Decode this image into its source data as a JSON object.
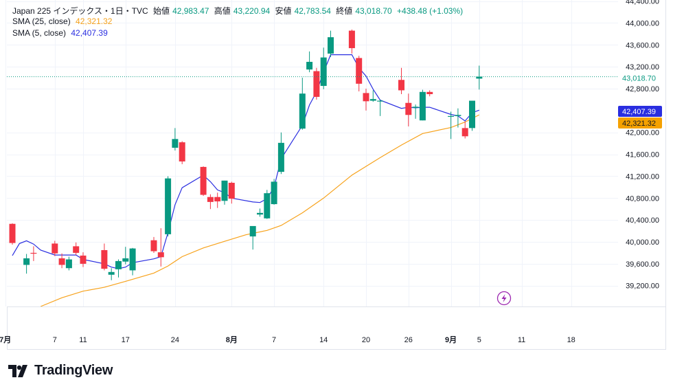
{
  "legend": {
    "symbol": "Japan 225 インデックス・1日・TVC",
    "open_label": "始値",
    "open": "42,983.47",
    "high_label": "高値",
    "high": "43,220.94",
    "low_label": "安値",
    "low": "42,783.54",
    "close_label": "終値",
    "close": "43,018.70",
    "change": "+438.48 (+1.03%)",
    "sma25_label": "SMA (25, close)",
    "sma25_value": "42,321.32",
    "sma5_label": "SMA (5, close)",
    "sma5_value": "42,407.39"
  },
  "price_badges": {
    "last": "43,018.70",
    "sma5": "42,407.39",
    "sma25": "42,321.32"
  },
  "brand": "TradingView",
  "colors": {
    "up": "#089981",
    "down": "#f23645",
    "sma5": "#2a2ee0",
    "sma25": "#f7a21b",
    "badge_sma5": "#2a2ee0",
    "badge_sma25": "#f5a100"
  },
  "chart_data": {
    "type": "candlestick",
    "y_ticks": [
      "44,400.00",
      "44,000.00",
      "43,600.00",
      "43,200.00",
      "42,800.00",
      "42,000.00",
      "41,600.00",
      "41,200.00",
      "40,800.00",
      "40,400.00",
      "40,000.00",
      "39,600.00",
      "39,200.00"
    ],
    "y_tick_values": [
      44400,
      44000,
      43600,
      43200,
      42800,
      42000,
      41600,
      41200,
      40800,
      40400,
      40000,
      39600,
      39200
    ],
    "ylim": [
      38820,
      44420
    ],
    "x_ticks": [
      {
        "label": "7月",
        "day": -1,
        "bold": true
      },
      {
        "label": "7",
        "day": 6
      },
      {
        "label": "11",
        "day": 10
      },
      {
        "label": "17",
        "day": 16
      },
      {
        "label": "24",
        "day": 23
      },
      {
        "label": "8月",
        "day": 31,
        "bold": true
      },
      {
        "label": "7",
        "day": 37
      },
      {
        "label": "14",
        "day": 44
      },
      {
        "label": "20",
        "day": 50
      },
      {
        "label": "26",
        "day": 56
      },
      {
        "label": "9月",
        "day": 62,
        "bold": true
      },
      {
        "label": "5",
        "day": 66
      },
      {
        "label": "11",
        "day": 72
      },
      {
        "label": "18",
        "day": 79
      }
    ],
    "candles": [
      {
        "day": 0,
        "o": 40330,
        "h": 40340,
        "l": 39950,
        "c": 39980
      },
      {
        "day": 2,
        "o": 39580,
        "h": 39780,
        "l": 39420,
        "c": 39700
      },
      {
        "day": 3,
        "o": 39800,
        "h": 39920,
        "l": 39650,
        "c": 39790
      },
      {
        "day": 6,
        "o": 39970,
        "h": 40020,
        "l": 39740,
        "c": 39790
      },
      {
        "day": 7,
        "o": 39700,
        "h": 39790,
        "l": 39520,
        "c": 39580
      },
      {
        "day": 8,
        "o": 39520,
        "h": 39730,
        "l": 39480,
        "c": 39680
      },
      {
        "day": 9,
        "o": 39920,
        "h": 39990,
        "l": 39760,
        "c": 39800
      },
      {
        "day": 10,
        "o": 39750,
        "h": 39810,
        "l": 39540,
        "c": 39600
      },
      {
        "day": 13,
        "o": 39850,
        "h": 39970,
        "l": 39480,
        "c": 39510
      },
      {
        "day": 14,
        "o": 39400,
        "h": 39520,
        "l": 39300,
        "c": 39450
      },
      {
        "day": 15,
        "o": 39500,
        "h": 39680,
        "l": 39350,
        "c": 39650
      },
      {
        "day": 16,
        "o": 39640,
        "h": 39910,
        "l": 39590,
        "c": 39700
      },
      {
        "day": 17,
        "o": 39480,
        "h": 39890,
        "l": 39390,
        "c": 39880
      },
      {
        "day": 20,
        "o": 40030,
        "h": 40090,
        "l": 39800,
        "c": 39830
      },
      {
        "day": 21,
        "o": 39810,
        "h": 40250,
        "l": 39550,
        "c": 39720
      },
      {
        "day": 22,
        "o": 40140,
        "h": 41200,
        "l": 40100,
        "c": 41160
      },
      {
        "day": 23,
        "o": 41720,
        "h": 42080,
        "l": 41670,
        "c": 41880
      },
      {
        "day": 24,
        "o": 41820,
        "h": 41840,
        "l": 41420,
        "c": 41470
      },
      {
        "day": 27,
        "o": 41370,
        "h": 41380,
        "l": 40840,
        "c": 40860
      },
      {
        "day": 28,
        "o": 40820,
        "h": 40870,
        "l": 40600,
        "c": 40730
      },
      {
        "day": 29,
        "o": 40820,
        "h": 40900,
        "l": 40620,
        "c": 40740
      },
      {
        "day": 30,
        "o": 40750,
        "h": 41120,
        "l": 40680,
        "c": 41120
      },
      {
        "day": 31,
        "o": 41080,
        "h": 41100,
        "l": 40700,
        "c": 40790
      },
      {
        "day": 34,
        "o": 40100,
        "h": 40270,
        "l": 39860,
        "c": 40290
      },
      {
        "day": 35,
        "o": 40500,
        "h": 40610,
        "l": 40460,
        "c": 40530
      },
      {
        "day": 36,
        "o": 40430,
        "h": 40950,
        "l": 40420,
        "c": 40890
      },
      {
        "day": 37,
        "o": 40690,
        "h": 41150,
        "l": 40680,
        "c": 41100
      },
      {
        "day": 38,
        "o": 41280,
        "h": 42000,
        "l": 41240,
        "c": 41810
      },
      {
        "day": 41,
        "o": 42070,
        "h": 43000,
        "l": 42050,
        "c": 42710
      },
      {
        "day": 42,
        "o": 43150,
        "h": 43480,
        "l": 43100,
        "c": 43290
      },
      {
        "day": 43,
        "o": 43120,
        "h": 43180,
        "l": 42600,
        "c": 42650
      },
      {
        "day": 44,
        "o": 42850,
        "h": 43550,
        "l": 42790,
        "c": 43370
      },
      {
        "day": 45,
        "o": 43440,
        "h": 43860,
        "l": 43380,
        "c": 43740
      },
      {
        "day": 48,
        "o": 43860,
        "h": 43880,
        "l": 43440,
        "c": 43540
      },
      {
        "day": 49,
        "o": 43360,
        "h": 43400,
        "l": 42750,
        "c": 42890
      },
      {
        "day": 50,
        "o": 42720,
        "h": 42800,
        "l": 42400,
        "c": 42570
      },
      {
        "day": 51,
        "o": 42580,
        "h": 42770,
        "l": 42560,
        "c": 42610
      },
      {
        "day": 52,
        "o": 42580,
        "h": 42600,
        "l": 42300,
        "c": 42580
      },
      {
        "day": 55,
        "o": 42960,
        "h": 43180,
        "l": 42700,
        "c": 42770
      },
      {
        "day": 56,
        "o": 42540,
        "h": 42710,
        "l": 42110,
        "c": 42320
      },
      {
        "day": 57,
        "o": 42450,
        "h": 42510,
        "l": 42250,
        "c": 42470
      },
      {
        "day": 58,
        "o": 42220,
        "h": 42780,
        "l": 42220,
        "c": 42740
      },
      {
        "day": 59,
        "o": 42740,
        "h": 42770,
        "l": 42660,
        "c": 42700
      },
      {
        "day": 62,
        "o": 42300,
        "h": 42380,
        "l": 41880,
        "c": 42300
      },
      {
        "day": 63,
        "o": 42300,
        "h": 42440,
        "l": 42090,
        "c": 42320
      },
      {
        "day": 64,
        "o": 42080,
        "h": 42200,
        "l": 41890,
        "c": 41930
      },
      {
        "day": 65,
        "o": 42080,
        "h": 42570,
        "l": 42030,
        "c": 42580
      },
      {
        "day": 66,
        "o": 42983.47,
        "h": 43220.94,
        "l": 42783.54,
        "c": 43018.7
      }
    ],
    "sma5": [
      [
        0,
        39750
      ],
      [
        1,
        39970
      ],
      [
        2,
        40020
      ],
      [
        3,
        39960
      ],
      [
        4,
        39850
      ],
      [
        6,
        39760
      ],
      [
        7,
        39760
      ],
      [
        9,
        39760
      ],
      [
        10,
        39680
      ],
      [
        13,
        39600
      ],
      [
        14,
        39540
      ],
      [
        15,
        39510
      ],
      [
        16,
        39540
      ],
      [
        17,
        39620
      ],
      [
        20,
        39690
      ],
      [
        21,
        39730
      ],
      [
        22,
        40170
      ],
      [
        23,
        40680
      ],
      [
        24,
        40990
      ],
      [
        27,
        41220
      ],
      [
        28,
        41100
      ],
      [
        29,
        40950
      ],
      [
        30,
        40900
      ],
      [
        31,
        40800
      ],
      [
        34,
        40730
      ],
      [
        35,
        40720
      ],
      [
        36,
        40790
      ],
      [
        37,
        41000
      ],
      [
        38,
        41520
      ],
      [
        41,
        42130
      ],
      [
        42,
        42500
      ],
      [
        43,
        42740
      ],
      [
        44,
        43100
      ],
      [
        45,
        43420
      ],
      [
        48,
        43420
      ],
      [
        49,
        43180
      ],
      [
        50,
        43030
      ],
      [
        51,
        42790
      ],
      [
        52,
        42590
      ],
      [
        55,
        42440
      ],
      [
        56,
        42460
      ],
      [
        57,
        42450
      ],
      [
        58,
        42460
      ],
      [
        59,
        42460
      ],
      [
        62,
        42330
      ],
      [
        63,
        42300
      ],
      [
        64,
        42210
      ],
      [
        65,
        42360
      ],
      [
        66,
        42407.39
      ]
    ],
    "sma25": [
      [
        4,
        38820
      ],
      [
        7,
        38980
      ],
      [
        10,
        39100
      ],
      [
        13,
        39170
      ],
      [
        16,
        39280
      ],
      [
        20,
        39430
      ],
      [
        22,
        39560
      ],
      [
        24,
        39730
      ],
      [
        27,
        39890
      ],
      [
        30,
        40010
      ],
      [
        33,
        40130
      ],
      [
        36,
        40210
      ],
      [
        38,
        40300
      ],
      [
        41,
        40530
      ],
      [
        44,
        40800
      ],
      [
        48,
        41220
      ],
      [
        52,
        41540
      ],
      [
        55,
        41770
      ],
      [
        58,
        41980
      ],
      [
        62,
        42090
      ],
      [
        64,
        42190
      ],
      [
        66,
        42321.32
      ]
    ]
  }
}
